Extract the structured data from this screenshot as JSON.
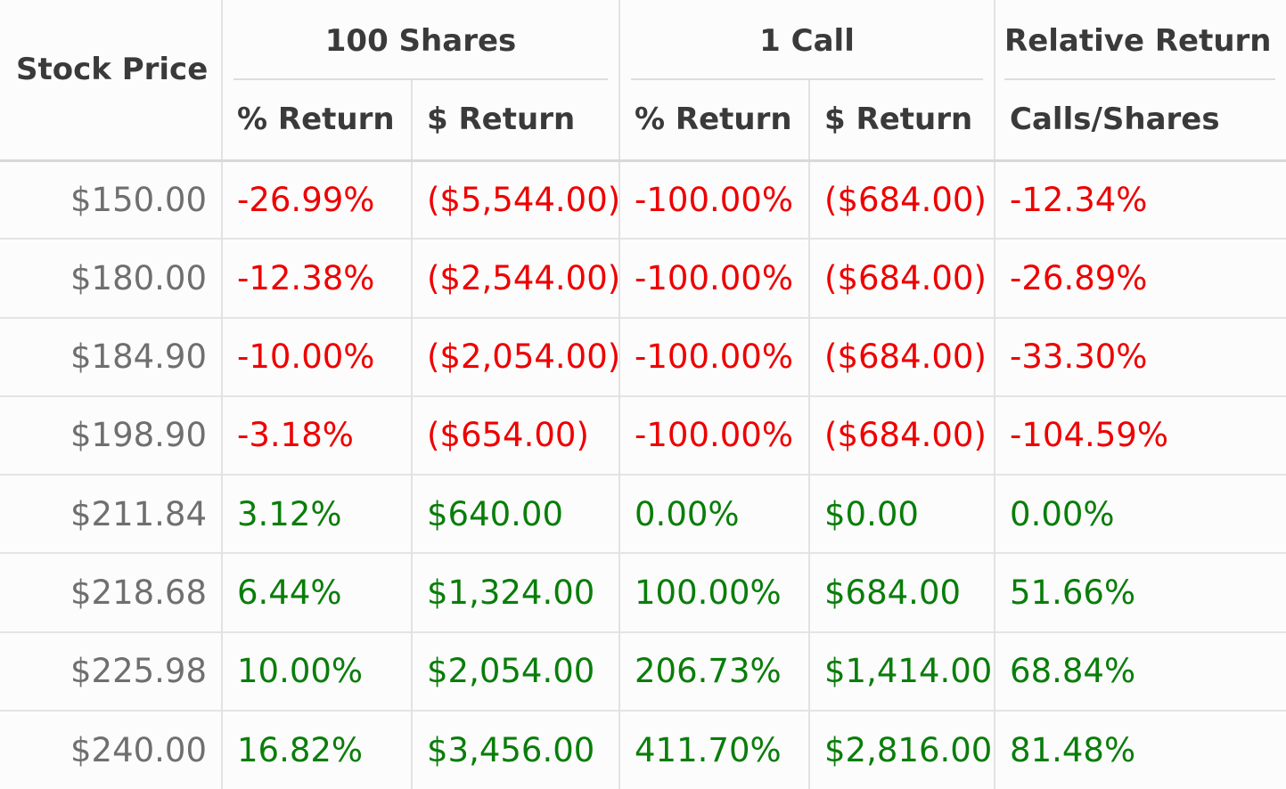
{
  "headers": {
    "stock_price": "Stock Price",
    "groups": {
      "shares": "100 Shares",
      "call": "1 Call",
      "relative": "Relative Return"
    },
    "sub": {
      "shares_pct": "% Return",
      "shares_dollar": "$ Return",
      "call_pct": "% Return",
      "call_dollar": "$ Return",
      "relative": "Calls/Shares"
    }
  },
  "colors": {
    "negative": "#ee0000",
    "positive": "#0a7d0a",
    "price_text": "#6f6f6f",
    "header_text": "#3a3a3a"
  },
  "rows": [
    {
      "price": "$150.00",
      "shares_pct": "-26.99%",
      "shares_dollar": "($5,544.00)",
      "call_pct": "-100.00%",
      "call_dollar": "($684.00)",
      "relative": "-12.34%",
      "sign": "neg"
    },
    {
      "price": "$180.00",
      "shares_pct": "-12.38%",
      "shares_dollar": "($2,544.00)",
      "call_pct": "-100.00%",
      "call_dollar": "($684.00)",
      "relative": "-26.89%",
      "sign": "neg"
    },
    {
      "price": "$184.90",
      "shares_pct": "-10.00%",
      "shares_dollar": "($2,054.00)",
      "call_pct": "-100.00%",
      "call_dollar": "($684.00)",
      "relative": "-33.30%",
      "sign": "neg"
    },
    {
      "price": "$198.90",
      "shares_pct": "-3.18%",
      "shares_dollar": "($654.00)",
      "call_pct": "-100.00%",
      "call_dollar": "($684.00)",
      "relative": "-104.59%",
      "sign": "neg"
    },
    {
      "price": "$211.84",
      "shares_pct": "3.12%",
      "shares_dollar": "$640.00",
      "call_pct": "0.00%",
      "call_dollar": "$0.00",
      "relative": "0.00%",
      "sign": "pos"
    },
    {
      "price": "$218.68",
      "shares_pct": "6.44%",
      "shares_dollar": "$1,324.00",
      "call_pct": "100.00%",
      "call_dollar": "$684.00",
      "relative": "51.66%",
      "sign": "pos"
    },
    {
      "price": "$225.98",
      "shares_pct": "10.00%",
      "shares_dollar": "$2,054.00",
      "call_pct": "206.73%",
      "call_dollar": "$1,414.00",
      "relative": "68.84%",
      "sign": "pos"
    },
    {
      "price": "$240.00",
      "shares_pct": "16.82%",
      "shares_dollar": "$3,456.00",
      "call_pct": "411.70%",
      "call_dollar": "$2,816.00",
      "relative": "81.48%",
      "sign": "pos"
    }
  ]
}
